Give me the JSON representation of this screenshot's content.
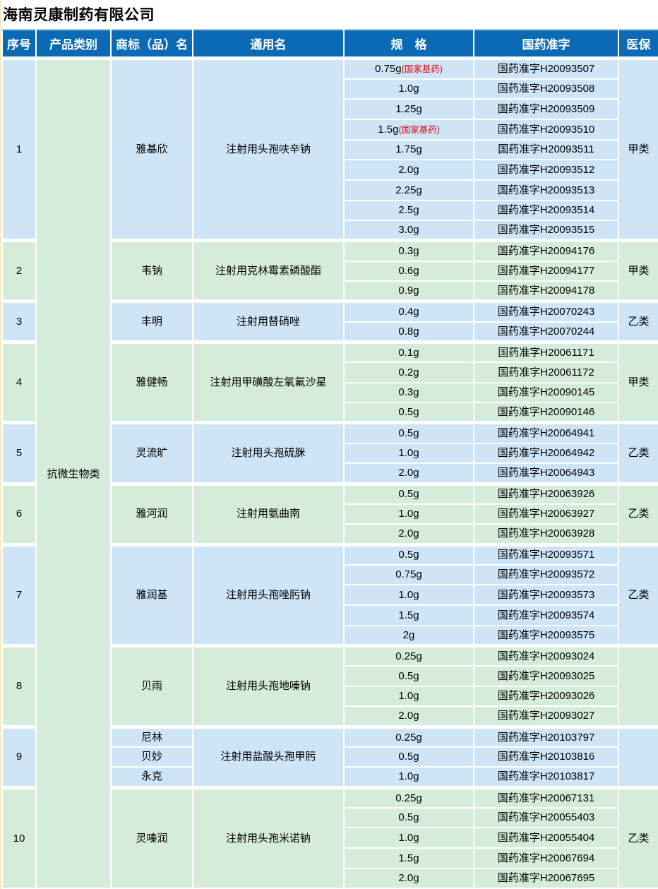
{
  "page": {
    "title": "海南灵康制药有限公司"
  },
  "colors": {
    "header_bg": "#0b6ab5",
    "header_text": "#ffffff",
    "blue_row": "#cde5f7",
    "green_row": "#d6ecda",
    "note_red": "#e8000f",
    "table_top_border": "#9fc6e8"
  },
  "table": {
    "headers": [
      {
        "key": "no",
        "label": "序号"
      },
      {
        "key": "category",
        "label": "产品类别"
      },
      {
        "key": "brand",
        "label": "商标（品）名"
      },
      {
        "key": "generic",
        "label": "通用名"
      },
      {
        "key": "spec",
        "label": "规　格"
      },
      {
        "key": "approval",
        "label": "国药准字"
      },
      {
        "key": "insurance",
        "label": "医保"
      }
    ],
    "category": "抗微生物类",
    "groups": [
      {
        "no": "1",
        "color": "blue",
        "brand": "雅基欣",
        "generic": "注射用头孢呋辛钠",
        "insurance": "甲类",
        "rows": [
          {
            "spec": "0.75g",
            "spec_note": "(国家基药)",
            "approval": "国药准字H20093507"
          },
          {
            "spec": "1.0g",
            "approval": "国药准字H20093508"
          },
          {
            "spec": "1.25g",
            "approval": "国药准字H20093509"
          },
          {
            "spec": "1.5g",
            "spec_note": "(国家基药)",
            "approval": "国药准字H20093510"
          },
          {
            "spec": "1.75g",
            "approval": "国药准字H20093511"
          },
          {
            "spec": "2.0g",
            "approval": "国药准字H20093512"
          },
          {
            "spec": "2.25g",
            "approval": "国药准字H20093513"
          },
          {
            "spec": "2.5g",
            "approval": "国药准字H20093514"
          },
          {
            "spec": "3.0g",
            "approval": "国药准字H20093515"
          }
        ]
      },
      {
        "no": "2",
        "color": "green",
        "brand": "韦钠",
        "generic": "注射用克林霉素磷酸酯",
        "insurance": "甲类",
        "rows": [
          {
            "spec": "0.3g",
            "approval": "国药准字H20094176"
          },
          {
            "spec": "0.6g",
            "approval": "国药准字H20094177"
          },
          {
            "spec": "0.9g",
            "approval": "国药准字H20094178"
          }
        ]
      },
      {
        "no": "3",
        "color": "blue",
        "brand": "丰明",
        "generic": "注射用替硝唑",
        "insurance": "乙类",
        "rows": [
          {
            "spec": "0.4g",
            "approval": "国药准字H20070243"
          },
          {
            "spec": "0.8g",
            "approval": "国药准字H20070244"
          }
        ]
      },
      {
        "no": "4",
        "color": "green",
        "brand": "雅健畅",
        "generic": "注射用甲磺酸左氧氟沙星",
        "insurance": "甲类",
        "rows": [
          {
            "spec": "0.1g",
            "approval": "国药准字H20061171"
          },
          {
            "spec": "0.2g",
            "approval": "国药准字H20061172"
          },
          {
            "spec": "0.3g",
            "approval": "国药准字H20090145"
          },
          {
            "spec": "0.5g",
            "approval": "国药准字H20090146"
          }
        ]
      },
      {
        "no": "5",
        "color": "blue",
        "brand": "灵流旷",
        "generic": "注射用头孢硫脒",
        "insurance": "乙类",
        "rows": [
          {
            "spec": "0.5g",
            "approval": "国药准字H20064941"
          },
          {
            "spec": "1.0g",
            "approval": "国药准字H20064942"
          },
          {
            "spec": "2.0g",
            "approval": "国药准字H20064943"
          }
        ]
      },
      {
        "no": "6",
        "color": "green",
        "brand": "雅河润",
        "generic": "注射用氨曲南",
        "insurance": "乙类",
        "rows": [
          {
            "spec": "0.5g",
            "approval": "国药准字H20063926"
          },
          {
            "spec": "1.0g",
            "approval": "国药准字H20063927"
          },
          {
            "spec": "2.0g",
            "approval": "国药准字H20063928"
          }
        ]
      },
      {
        "no": "7",
        "color": "blue",
        "brand": "雅润基",
        "generic": "注射用头孢唑肟钠",
        "insurance": "乙类",
        "rows": [
          {
            "spec": "0.5g",
            "approval": "国药准字H20093571"
          },
          {
            "spec": "0.75g",
            "approval": "国药准字H20093572"
          },
          {
            "spec": "1.0g",
            "approval": "国药准字H20093573"
          },
          {
            "spec": "1.5g",
            "approval": "国药准字H20093574"
          },
          {
            "spec": "2g",
            "approval": "国药准字H20093575"
          }
        ]
      },
      {
        "no": "8",
        "color": "green",
        "brand": "贝雨",
        "generic": "注射用头孢地嗪钠",
        "insurance": "",
        "rows": [
          {
            "spec": "0.25g",
            "approval": "国药准字H20093024"
          },
          {
            "spec": "0.5g",
            "approval": "国药准字H20093025"
          },
          {
            "spec": "1.0g",
            "approval": "国药准字H20093026"
          },
          {
            "spec": "2.0g",
            "approval": "国药准字H20093027"
          }
        ]
      },
      {
        "no": "9",
        "color": "blue",
        "brand": null,
        "generic": "注射用盐酸头孢甲肟",
        "insurance": "",
        "rows": [
          {
            "brand": "尼林",
            "spec": "0.25g",
            "approval": "国药准字H20103797"
          },
          {
            "brand": "贝妙",
            "spec": "0.5g",
            "approval": "国药准字H20103816"
          },
          {
            "brand": "永克",
            "spec": "1.0g",
            "approval": "国药准字H20103817"
          }
        ]
      },
      {
        "no": "10",
        "color": "green",
        "brand": "灵嗪润",
        "generic": "注射用头孢米诺钠",
        "insurance": "乙类",
        "rows": [
          {
            "spec": "0.25g",
            "approval": "国药准字H20067131"
          },
          {
            "spec": "0.5g",
            "approval": "国药准字H20055403"
          },
          {
            "spec": "1.0g",
            "approval": "国药准字H20055404"
          },
          {
            "spec": "1.5g",
            "approval": "国药准字H20067694"
          },
          {
            "spec": "2.0g",
            "approval": "国药准字H20067695"
          }
        ]
      }
    ]
  }
}
